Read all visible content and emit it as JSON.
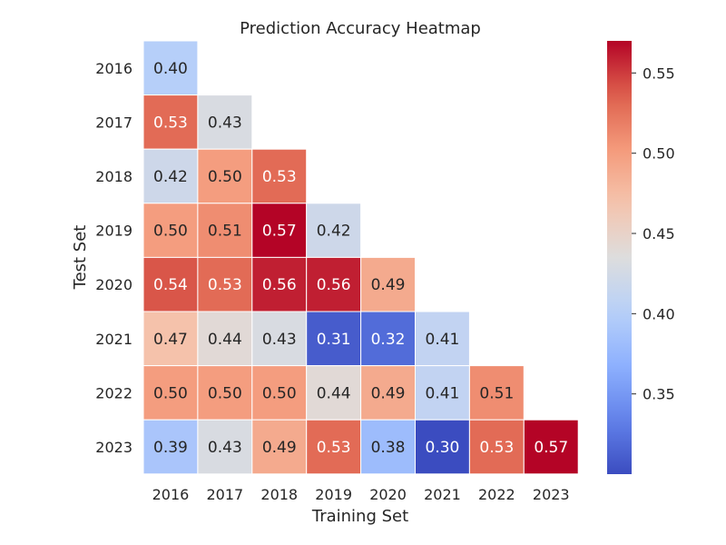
{
  "chart_data": {
    "type": "heatmap",
    "title": "Prediction Accuracy Heatmap",
    "xlabel": "Training Set",
    "ylabel": "Test Set",
    "x_categories": [
      "2016",
      "2017",
      "2018",
      "2019",
      "2020",
      "2021",
      "2022",
      "2023"
    ],
    "y_categories": [
      "2016",
      "2017",
      "2018",
      "2019",
      "2020",
      "2021",
      "2022",
      "2023"
    ],
    "masked": "upper-triangle",
    "values": [
      [
        0.4,
        null,
        null,
        null,
        null,
        null,
        null,
        null
      ],
      [
        0.53,
        0.43,
        null,
        null,
        null,
        null,
        null,
        null
      ],
      [
        0.42,
        0.5,
        0.53,
        null,
        null,
        null,
        null,
        null
      ],
      [
        0.5,
        0.51,
        0.57,
        0.42,
        null,
        null,
        null,
        null
      ],
      [
        0.54,
        0.53,
        0.56,
        0.56,
        0.49,
        null,
        null,
        null
      ],
      [
        0.47,
        0.44,
        0.43,
        0.31,
        0.32,
        0.41,
        null,
        null
      ],
      [
        0.5,
        0.5,
        0.5,
        0.44,
        0.49,
        0.41,
        0.51,
        null
      ],
      [
        0.39,
        0.43,
        0.49,
        0.53,
        0.38,
        0.3,
        0.53,
        0.57
      ]
    ],
    "colormap": "coolwarm",
    "color_range": [
      0.3,
      0.57
    ],
    "colorbar_ticks": [
      "0.35",
      "0.40",
      "0.45",
      "0.50",
      "0.55"
    ],
    "colorbar_tick_values": [
      0.35,
      0.4,
      0.45,
      0.5,
      0.55
    ],
    "legend": "colorbar-right"
  }
}
